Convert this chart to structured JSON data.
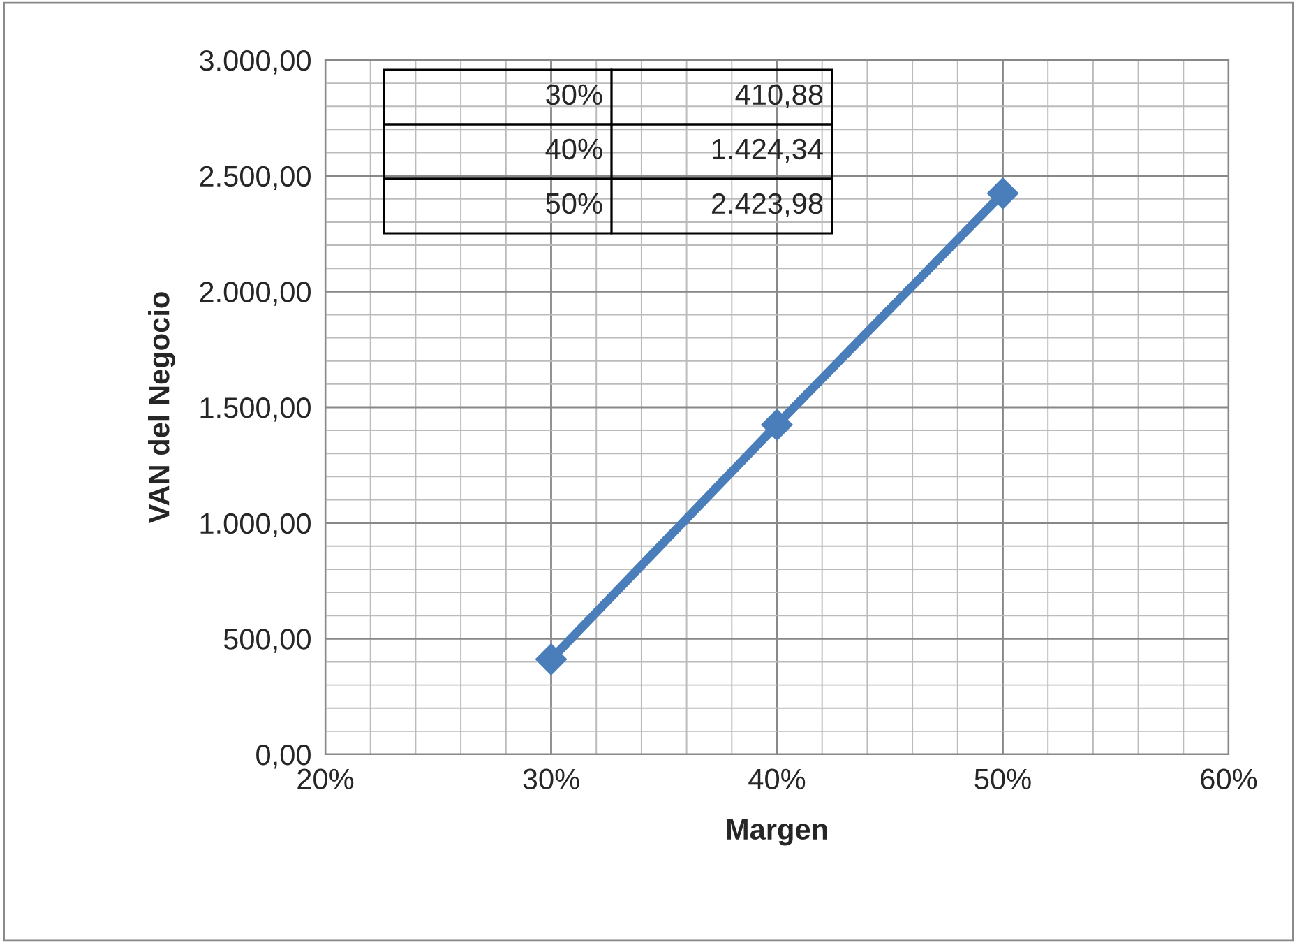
{
  "chart_data": {
    "type": "line",
    "xlabel": "Margen",
    "ylabel": "VAN del Negocio",
    "x": [
      30,
      40,
      50
    ],
    "series": [
      {
        "color": "#4a7ebb",
        "values": [
          410.88,
          1424.34,
          2423.98
        ]
      }
    ],
    "value_labels": [
      "410,88",
      "1.424,34",
      "2.423,98"
    ],
    "xlim": [
      20,
      60
    ],
    "ylim": [
      0,
      3000
    ],
    "xticks": [
      {
        "value": 20,
        "label": "20%"
      },
      {
        "value": 30,
        "label": "30%"
      },
      {
        "value": 40,
        "label": "40%"
      },
      {
        "value": 50,
        "label": "50%"
      },
      {
        "value": 60,
        "label": "60%"
      }
    ],
    "yticks": [
      {
        "value": 0,
        "label": "0,00"
      },
      {
        "value": 500,
        "label": "500,00"
      },
      {
        "value": 1000,
        "label": "1.000,00"
      },
      {
        "value": 1500,
        "label": "1.500,00"
      },
      {
        "value": 2000,
        "label": "2.000,00"
      },
      {
        "value": 2500,
        "label": "2.500,00"
      },
      {
        "value": 3000,
        "label": "3.000,00"
      }
    ],
    "grid": true,
    "marker": "diamond",
    "line_style": "solid",
    "legend": false
  }
}
